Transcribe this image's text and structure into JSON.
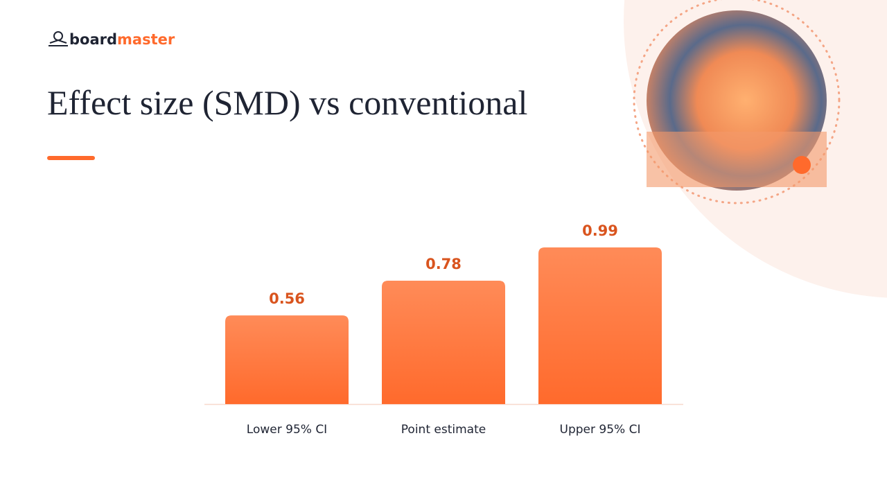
{
  "logo": [
    "board",
    "master"
  ],
  "chart_data": {
    "type": "bar",
    "title": "Effect size (SMD) vs conventional",
    "categories": [
      "Lower 95% CI",
      "Point estimate",
      "Upper 95% CI"
    ],
    "values": [
      0.56,
      0.78,
      0.99
    ],
    "color": "#ff7338"
  }
}
